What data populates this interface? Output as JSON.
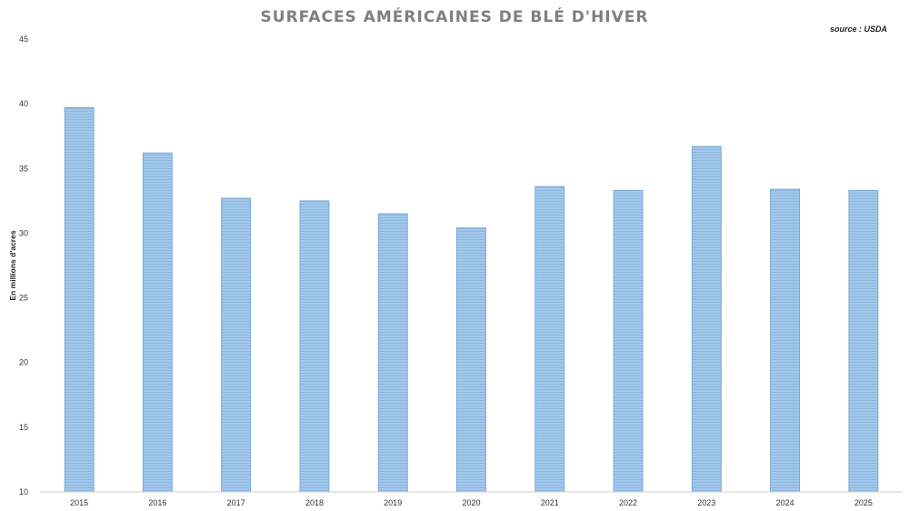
{
  "chart_data": {
    "type": "bar",
    "title": "SURFACES AMÉRICAINES DE BLÉ D'HIVER",
    "source": "source : USDA",
    "ylabel": "En millions d'acres",
    "xlabel": "",
    "categories": [
      "2015",
      "2016",
      "2017",
      "2018",
      "2019",
      "2020",
      "2021",
      "2022",
      "2023",
      "2024",
      "2025"
    ],
    "values": [
      39.7,
      36.2,
      32.7,
      32.5,
      31.5,
      30.4,
      33.6,
      33.3,
      36.7,
      33.4,
      33.3
    ],
    "ylim": [
      10,
      45
    ],
    "yticks": [
      10,
      15,
      20,
      25,
      30,
      35,
      40,
      45
    ],
    "grid": false,
    "legend": "none",
    "bar_color": "#9cc3e6",
    "bar_edge_color": "#7aa9d6"
  }
}
